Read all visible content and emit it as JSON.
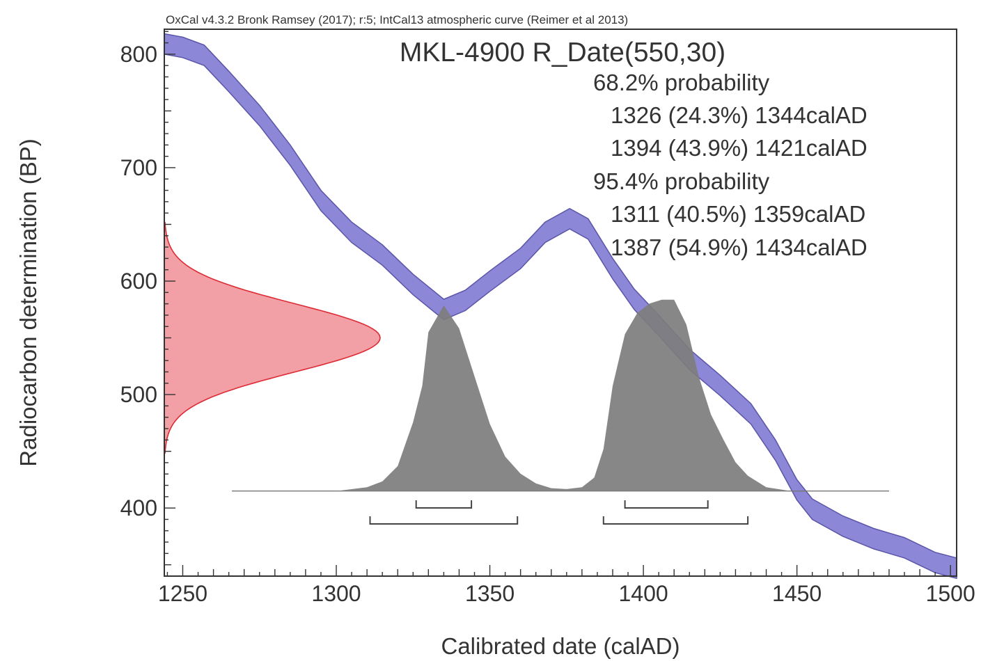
{
  "header": {
    "credit": "OxCal v4.3.2 Bronk Ramsey (2017); r:5; IntCal13 atmospheric curve (Reimer et al 2013)"
  },
  "chart_data": {
    "type": "area",
    "title": "MKL-4900 R_Date(550,30)",
    "xlabel": "Calibrated date (calAD)",
    "ylabel": "Radiocarbon determination (BP)",
    "xlim": [
      1244,
      1502
    ],
    "ylim": [
      340,
      822
    ],
    "x_ticks": [
      1250,
      1300,
      1350,
      1400,
      1450,
      1500
    ],
    "y_ticks": [
      400,
      500,
      600,
      700,
      800
    ],
    "grid": false,
    "ranges_text": [
      "68.2% probability",
      "1326 (24.3%) 1344calAD",
      "1394 (43.9%) 1421calAD",
      "95.4% probability",
      "1311 (40.5%) 1359calAD",
      "1387 (54.9%) 1434calAD"
    ],
    "calibration_curve": {
      "color": "#8c87d6",
      "edge_color": "#5a55a8",
      "points": [
        {
          "x": 1244,
          "upper": 818,
          "lower": 800
        },
        {
          "x": 1250,
          "upper": 815,
          "lower": 797
        },
        {
          "x": 1257,
          "upper": 808,
          "lower": 790
        },
        {
          "x": 1265,
          "upper": 785,
          "lower": 767
        },
        {
          "x": 1275,
          "upper": 755,
          "lower": 737
        },
        {
          "x": 1285,
          "upper": 720,
          "lower": 702
        },
        {
          "x": 1295,
          "upper": 680,
          "lower": 662
        },
        {
          "x": 1305,
          "upper": 652,
          "lower": 634
        },
        {
          "x": 1315,
          "upper": 632,
          "lower": 614
        },
        {
          "x": 1325,
          "upper": 606,
          "lower": 588
        },
        {
          "x": 1335,
          "upper": 584,
          "lower": 566
        },
        {
          "x": 1342,
          "upper": 592,
          "lower": 574
        },
        {
          "x": 1350,
          "upper": 609,
          "lower": 591
        },
        {
          "x": 1360,
          "upper": 629,
          "lower": 611
        },
        {
          "x": 1368,
          "upper": 652,
          "lower": 634
        },
        {
          "x": 1376,
          "upper": 664,
          "lower": 646
        },
        {
          "x": 1382,
          "upper": 655,
          "lower": 637
        },
        {
          "x": 1390,
          "upper": 620,
          "lower": 602
        },
        {
          "x": 1397,
          "upper": 593,
          "lower": 575
        },
        {
          "x": 1405,
          "upper": 570,
          "lower": 552
        },
        {
          "x": 1415,
          "upper": 540,
          "lower": 522
        },
        {
          "x": 1425,
          "upper": 517,
          "lower": 499
        },
        {
          "x": 1435,
          "upper": 492,
          "lower": 474
        },
        {
          "x": 1443,
          "upper": 460,
          "lower": 442
        },
        {
          "x": 1450,
          "upper": 425,
          "lower": 407
        },
        {
          "x": 1455,
          "upper": 408,
          "lower": 390
        },
        {
          "x": 1465,
          "upper": 393,
          "lower": 375
        },
        {
          "x": 1475,
          "upper": 382,
          "lower": 364
        },
        {
          "x": 1485,
          "upper": 374,
          "lower": 356
        },
        {
          "x": 1495,
          "upper": 361,
          "lower": 343
        },
        {
          "x": 1502,
          "upper": 356,
          "lower": 338
        }
      ]
    },
    "radiocarbon_distribution": {
      "mean": 550,
      "sigma": 30,
      "color": "#f2a0a6",
      "edge_color": "#dd2a33"
    },
    "posterior_distribution": {
      "color": "#7d7d7d",
      "baseline": 415,
      "points": [
        {
          "x": 1300,
          "y": 0.0
        },
        {
          "x": 1310,
          "y": 0.02
        },
        {
          "x": 1315,
          "y": 0.05
        },
        {
          "x": 1320,
          "y": 0.13
        },
        {
          "x": 1325,
          "y": 0.36
        },
        {
          "x": 1328,
          "y": 0.55
        },
        {
          "x": 1330,
          "y": 0.83
        },
        {
          "x": 1335,
          "y": 0.97
        },
        {
          "x": 1340,
          "y": 0.85
        },
        {
          "x": 1345,
          "y": 0.6
        },
        {
          "x": 1350,
          "y": 0.35
        },
        {
          "x": 1355,
          "y": 0.18
        },
        {
          "x": 1360,
          "y": 0.09
        },
        {
          "x": 1365,
          "y": 0.04
        },
        {
          "x": 1370,
          "y": 0.015
        },
        {
          "x": 1375,
          "y": 0.01
        },
        {
          "x": 1380,
          "y": 0.02
        },
        {
          "x": 1384,
          "y": 0.07
        },
        {
          "x": 1387,
          "y": 0.22
        },
        {
          "x": 1390,
          "y": 0.55
        },
        {
          "x": 1394,
          "y": 0.82
        },
        {
          "x": 1398,
          "y": 0.93
        },
        {
          "x": 1402,
          "y": 0.98
        },
        {
          "x": 1406,
          "y": 1.0
        },
        {
          "x": 1410,
          "y": 1.0
        },
        {
          "x": 1414,
          "y": 0.87
        },
        {
          "x": 1418,
          "y": 0.6
        },
        {
          "x": 1422,
          "y": 0.4
        },
        {
          "x": 1426,
          "y": 0.27
        },
        {
          "x": 1430,
          "y": 0.15
        },
        {
          "x": 1434,
          "y": 0.08
        },
        {
          "x": 1440,
          "y": 0.02
        },
        {
          "x": 1448,
          "y": 0.0
        }
      ],
      "baseline_extent": [
        1266,
        1480
      ],
      "range_bars": [
        {
          "level": "68.2",
          "from": 1326,
          "to": 1344
        },
        {
          "level": "68.2",
          "from": 1394,
          "to": 1421
        },
        {
          "level": "95.4",
          "from": 1311,
          "to": 1359
        },
        {
          "level": "95.4",
          "from": 1387,
          "to": 1434
        }
      ]
    }
  }
}
